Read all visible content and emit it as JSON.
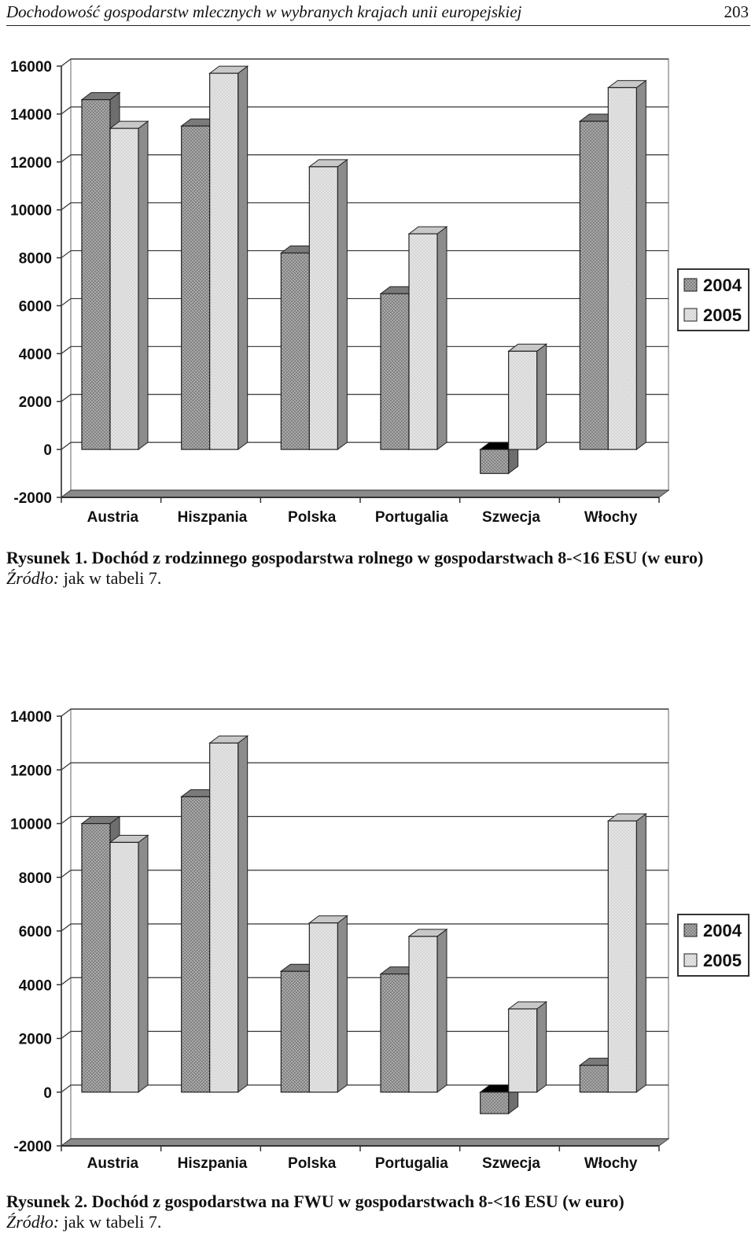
{
  "running_head": {
    "title": "Dochodowość gospodarstw mlecznych w wybranych krajach unii europejskiej",
    "page_number": "203"
  },
  "colors": {
    "bar_2004": "#a8a8a8",
    "bar_2005": "#e4e4e4",
    "floor": "#8a8a8a",
    "grid": "#333333"
  },
  "figures": [
    {
      "caption_label": "Rysunek 1.",
      "caption_text": "Dochód z rodzinnego gospodarstwa rolnego w gospodarstwach 8-<16 ESU (w euro)",
      "source_label": "Źródło:",
      "source_text": "jak w tabeli 7.",
      "chart_data": {
        "type": "bar",
        "title": "",
        "xlabel": "",
        "ylabel": "",
        "categories": [
          "Austria",
          "Hiszpania",
          "Polska",
          "Portugalia",
          "Szwecja",
          "Włochy"
        ],
        "series": [
          {
            "name": "2004",
            "values": [
              14600,
              13500,
              8200,
              6500,
              -1000,
              13700
            ]
          },
          {
            "name": "2005",
            "values": [
              13400,
              15700,
              11800,
              9000,
              4100,
              15100
            ]
          }
        ],
        "ylim": [
          -2000,
          16000
        ],
        "yticks": [
          "16000",
          "14000",
          "12000",
          "10000",
          "8000",
          "6000",
          "4000",
          "2000",
          "0",
          "-2000"
        ],
        "grid": true,
        "legend": "right"
      }
    },
    {
      "caption_label": "Rysunek 2.",
      "caption_text": "Dochód z gospodarstwa na FWU w gospodarstwach 8-<16 ESU (w euro)",
      "source_label": "Źródło:",
      "source_text": "jak w tabeli 7.",
      "chart_data": {
        "type": "bar",
        "title": "",
        "xlabel": "",
        "ylabel": "",
        "categories": [
          "Austria",
          "Hiszpania",
          "Polska",
          "Portugalia",
          "Szwecja",
          "Włochy"
        ],
        "series": [
          {
            "name": "2004",
            "values": [
              10000,
              11000,
              4500,
              4400,
              -800,
              1000
            ]
          },
          {
            "name": "2005",
            "values": [
              9300,
              13000,
              6300,
              5800,
              3100,
              10100
            ]
          }
        ],
        "ylim": [
          -2000,
          14000
        ],
        "yticks": [
          "14000",
          "12000",
          "10000",
          "8000",
          "6000",
          "4000",
          "2000",
          "0",
          "-2000"
        ],
        "grid": true,
        "legend": "right"
      }
    }
  ]
}
